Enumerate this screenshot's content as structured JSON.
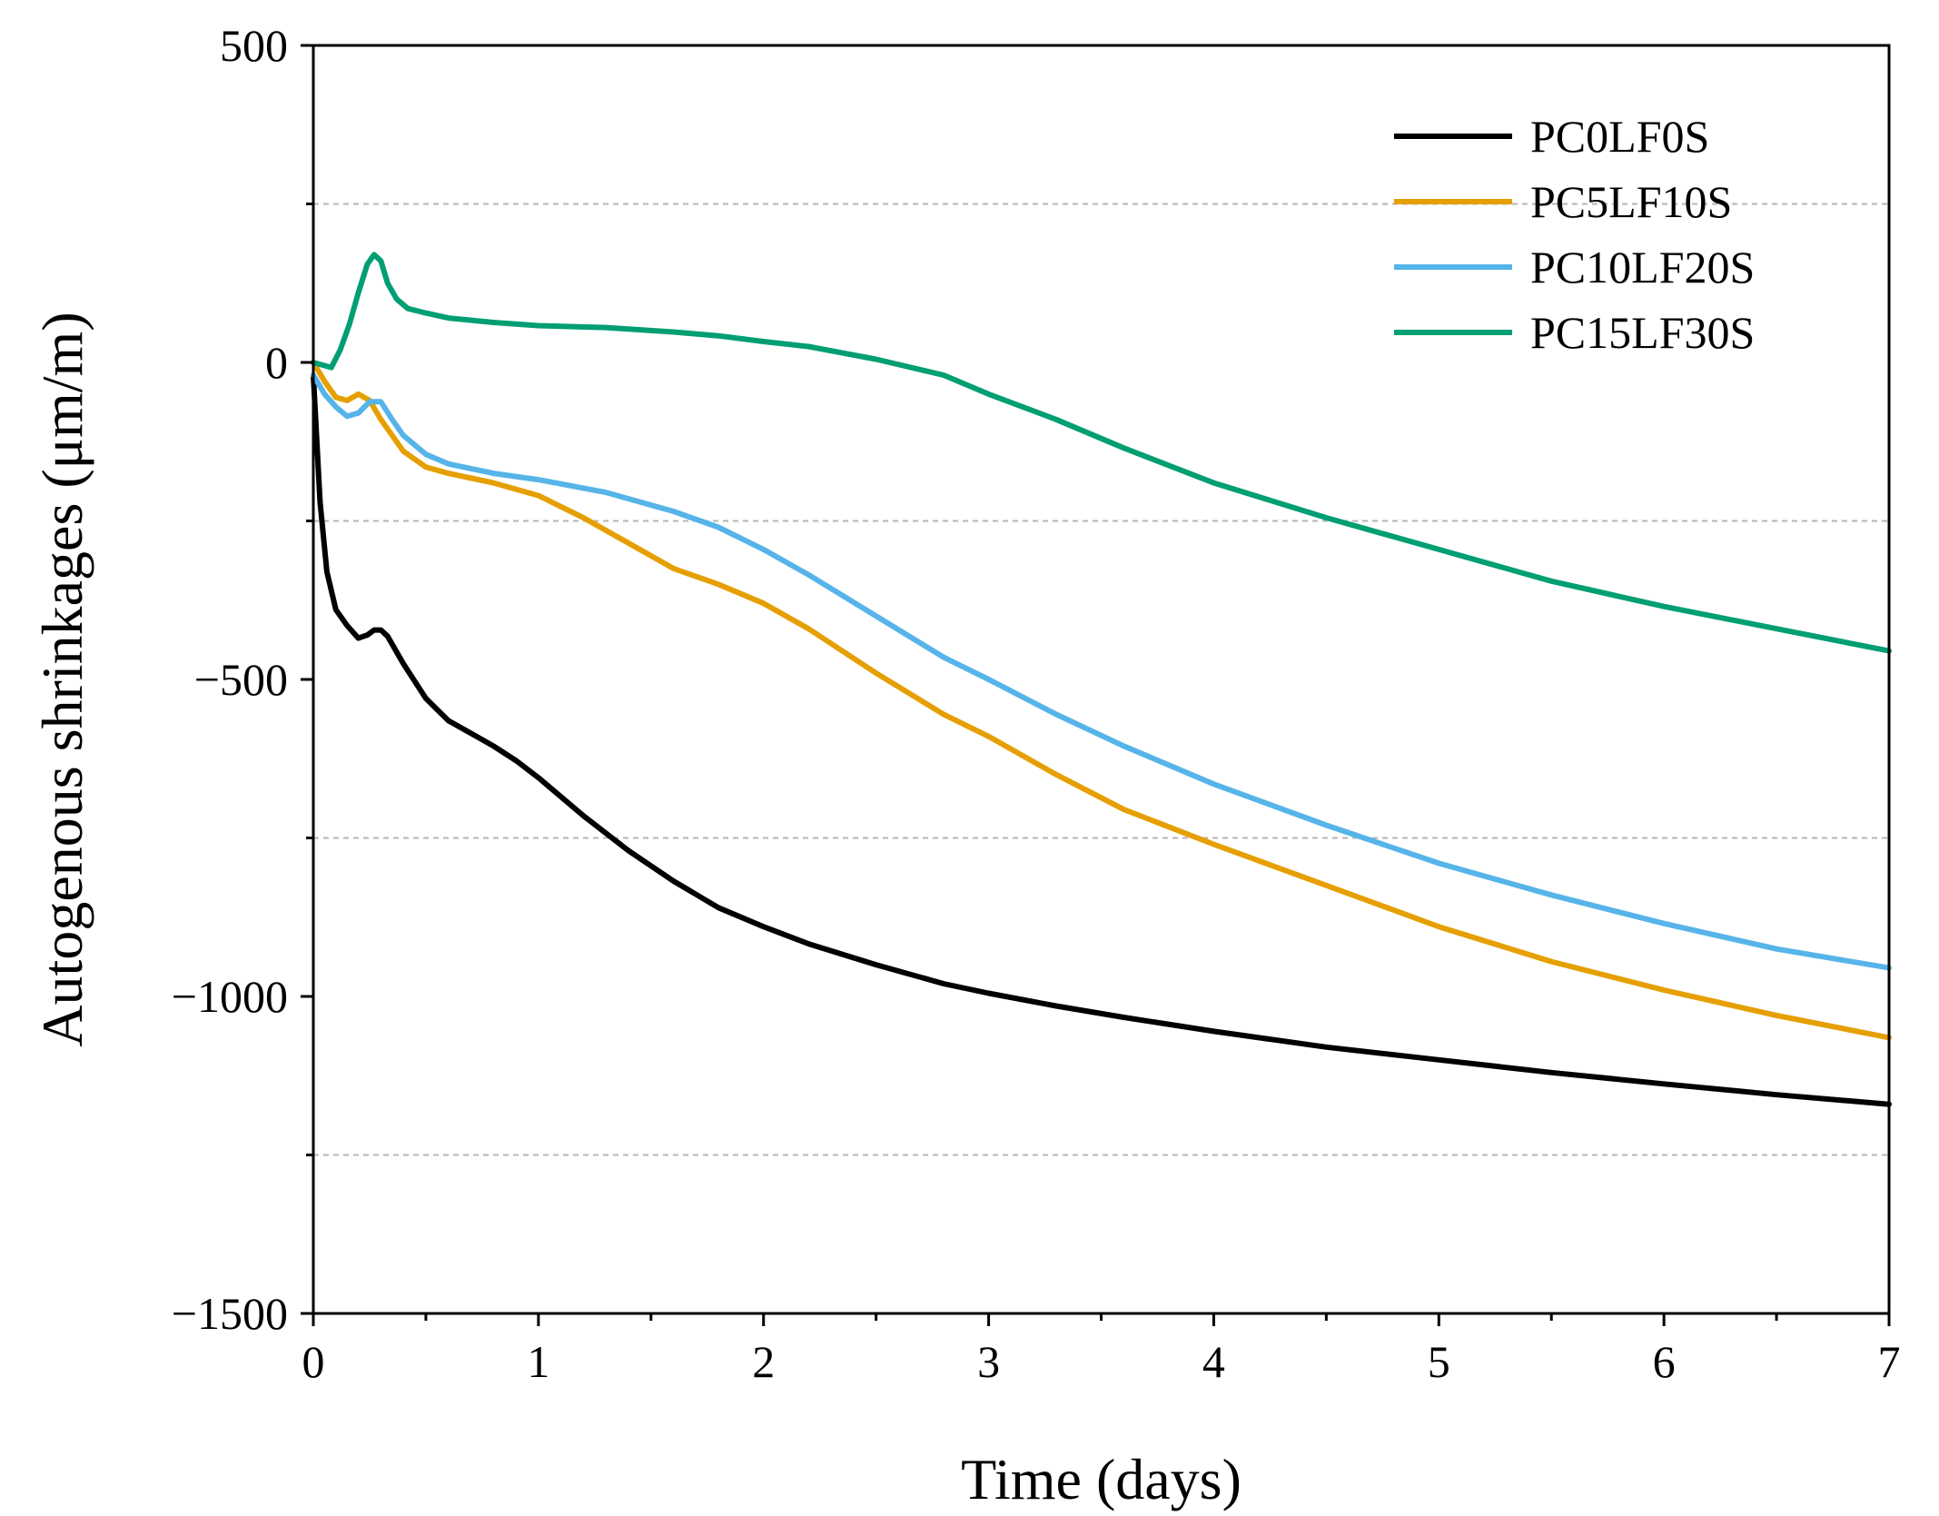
{
  "chart_data": {
    "type": "line",
    "title": "",
    "xlabel": "Time (days)",
    "ylabel": "Autogenous shrinkages (μm/m)",
    "xlim": [
      0,
      7
    ],
    "ylim": [
      -1500,
      500
    ],
    "xticks": [
      "0",
      "1",
      "2",
      "3",
      "4",
      "5",
      "6",
      "7"
    ],
    "yticks": [
      "500",
      "0",
      "−500",
      "−1000",
      "−1500"
    ],
    "grid": "dashed horizontal at -1250, -750, -250, 250",
    "legend_position": "top-right",
    "series": [
      {
        "name": "PC0LF0S",
        "color": "#000000",
        "x": [
          0,
          0.03,
          0.06,
          0.1,
          0.15,
          0.2,
          0.24,
          0.27,
          0.3,
          0.33,
          0.4,
          0.5,
          0.6,
          0.7,
          0.8,
          0.9,
          1.0,
          1.2,
          1.4,
          1.6,
          1.8,
          2.0,
          2.2,
          2.5,
          2.8,
          3.0,
          3.3,
          3.6,
          4.0,
          4.5,
          5.0,
          5.5,
          6.0,
          6.5,
          7.0
        ],
        "y": [
          -20,
          -220,
          -330,
          -390,
          -415,
          -435,
          -430,
          -422,
          -422,
          -432,
          -475,
          -530,
          -565,
          -585,
          -605,
          -628,
          -655,
          -715,
          -770,
          -818,
          -860,
          -890,
          -917,
          -950,
          -980,
          -995,
          -1015,
          -1033,
          -1055,
          -1080,
          -1100,
          -1120,
          -1138,
          -1155,
          -1170
        ]
      },
      {
        "name": "PC5LF10S",
        "color": "#E69F00",
        "x": [
          0,
          0.05,
          0.1,
          0.15,
          0.2,
          0.25,
          0.3,
          0.4,
          0.5,
          0.6,
          0.8,
          1.0,
          1.2,
          1.4,
          1.6,
          1.8,
          2.0,
          2.2,
          2.5,
          2.8,
          3.0,
          3.3,
          3.6,
          4.0,
          4.5,
          5.0,
          5.5,
          6.0,
          6.5,
          7.0
        ],
        "y": [
          0,
          -30,
          -55,
          -60,
          -50,
          -60,
          -90,
          -140,
          -165,
          -175,
          -190,
          -210,
          -245,
          -285,
          -325,
          -350,
          -380,
          -420,
          -490,
          -555,
          -590,
          -650,
          -705,
          -760,
          -825,
          -890,
          -945,
          -990,
          -1030,
          -1065
        ]
      },
      {
        "name": "PC10LF20S",
        "color": "#56B4E9",
        "x": [
          0,
          0.05,
          0.1,
          0.15,
          0.2,
          0.25,
          0.3,
          0.35,
          0.4,
          0.5,
          0.6,
          0.8,
          1.0,
          1.3,
          1.6,
          1.8,
          2.0,
          2.2,
          2.5,
          2.8,
          3.0,
          3.3,
          3.6,
          4.0,
          4.5,
          5.0,
          5.5,
          6.0,
          6.5,
          7.0
        ],
        "y": [
          -20,
          -50,
          -70,
          -85,
          -80,
          -62,
          -62,
          -90,
          -115,
          -145,
          -160,
          -175,
          -185,
          -205,
          -235,
          -260,
          -295,
          -335,
          -400,
          -465,
          -500,
          -555,
          -605,
          -665,
          -730,
          -790,
          -840,
          -885,
          -925,
          -955
        ]
      },
      {
        "name": "PC15LF30S",
        "color": "#009E73",
        "x": [
          0,
          0.05,
          0.08,
          0.12,
          0.16,
          0.2,
          0.24,
          0.27,
          0.3,
          0.33,
          0.37,
          0.42,
          0.5,
          0.6,
          0.8,
          1.0,
          1.3,
          1.6,
          1.8,
          2.0,
          2.2,
          2.5,
          2.8,
          3.0,
          3.3,
          3.6,
          4.0,
          4.5,
          5.0,
          5.5,
          6.0,
          6.5,
          7.0
        ],
        "y": [
          0,
          -5,
          -8,
          20,
          60,
          110,
          155,
          170,
          160,
          125,
          100,
          85,
          78,
          70,
          63,
          58,
          55,
          48,
          42,
          33,
          25,
          5,
          -20,
          -50,
          -90,
          -135,
          -190,
          -245,
          -295,
          -345,
          -385,
          -420,
          -455
        ]
      }
    ]
  }
}
